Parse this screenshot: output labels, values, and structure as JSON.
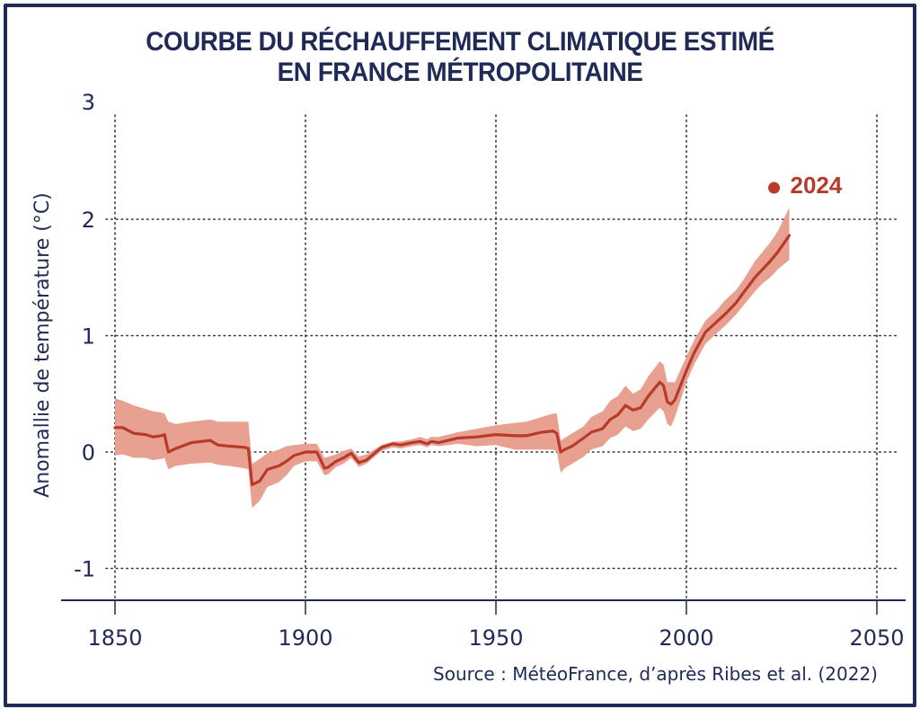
{
  "chart_data": {
    "type": "line",
    "title": [
      "COURBE DU RÉCHAUFFEMENT CLIMATIQUE ESTIMÉ",
      "EN FRANCE MÉTROPOLITAINE"
    ],
    "xlabel": "",
    "ylabel": "Anomallie de température (°C)",
    "xlim": [
      1842,
      2062
    ],
    "ylim": [
      -1.3,
      3
    ],
    "xticks": [
      1850,
      1900,
      1950,
      2000,
      2050
    ],
    "xtick_labels": [
      "1850",
      "1900",
      "1950",
      "2000",
      "2050"
    ],
    "yticks": [
      3,
      2,
      1,
      0,
      -1
    ],
    "ytick_labels": [
      "3",
      "2",
      "1",
      "0",
      "-1"
    ],
    "grid": true,
    "colors": {
      "line": "#b83a2b",
      "band": "#e8a090",
      "axis": "#1f2a56",
      "grid": "#333333"
    },
    "series": [
      {
        "name": "Estimated warming (central)",
        "x": [
          1850,
          1852,
          1855,
          1858,
          1860,
          1862,
          1863,
          1864,
          1866,
          1870,
          1875,
          1877,
          1880,
          1884,
          1885,
          1886,
          1888,
          1890,
          1893,
          1895,
          1897,
          1900,
          1903,
          1905,
          1906,
          1908,
          1910,
          1912,
          1914,
          1916,
          1920,
          1923,
          1925,
          1928,
          1930,
          1932,
          1933,
          1935,
          1940,
          1945,
          1950,
          1955,
          1958,
          1962,
          1965,
          1966,
          1967,
          1968,
          1970,
          1973,
          1975,
          1978,
          1980,
          1982,
          1984,
          1986,
          1988,
          1990,
          1993,
          1994,
          1995,
          1996,
          1997,
          2000,
          2002,
          2005,
          2008,
          2010,
          2013,
          2015,
          2018,
          2020,
          2022,
          2024,
          2027
        ],
        "y": [
          0.21,
          0.21,
          0.16,
          0.15,
          0.13,
          0.14,
          0.15,
          0.0,
          0.03,
          0.08,
          0.1,
          0.06,
          0.05,
          0.04,
          0.03,
          -0.28,
          -0.25,
          -0.15,
          -0.12,
          -0.08,
          -0.03,
          0.0,
          0.0,
          -0.14,
          -0.13,
          -0.08,
          -0.05,
          -0.01,
          -0.09,
          -0.07,
          0.04,
          0.07,
          0.06,
          0.08,
          0.09,
          0.07,
          0.09,
          0.08,
          0.12,
          0.13,
          0.15,
          0.14,
          0.14,
          0.17,
          0.18,
          0.16,
          0.0,
          0.02,
          0.05,
          0.12,
          0.17,
          0.2,
          0.28,
          0.32,
          0.4,
          0.36,
          0.38,
          0.48,
          0.6,
          0.57,
          0.43,
          0.41,
          0.45,
          0.7,
          0.85,
          1.03,
          1.12,
          1.18,
          1.28,
          1.37,
          1.5,
          1.57,
          1.64,
          1.72,
          1.86
        ]
      },
      {
        "name": "Uncertainty lower bound",
        "x": [
          1850,
          1852,
          1855,
          1858,
          1860,
          1862,
          1863,
          1864,
          1866,
          1870,
          1875,
          1877,
          1880,
          1884,
          1885,
          1886,
          1888,
          1890,
          1893,
          1895,
          1897,
          1900,
          1903,
          1905,
          1906,
          1908,
          1910,
          1912,
          1914,
          1916,
          1920,
          1923,
          1925,
          1928,
          1930,
          1932,
          1933,
          1935,
          1940,
          1945,
          1950,
          1955,
          1958,
          1962,
          1965,
          1966,
          1967,
          1968,
          1970,
          1973,
          1975,
          1978,
          1980,
          1982,
          1984,
          1986,
          1988,
          1990,
          1993,
          1994,
          1995,
          1996,
          1997,
          2000,
          2002,
          2005,
          2008,
          2010,
          2013,
          2015,
          2018,
          2020,
          2022,
          2024,
          2027
        ],
        "y": [
          -0.03,
          -0.02,
          -0.05,
          -0.05,
          -0.07,
          -0.06,
          -0.05,
          -0.15,
          -0.12,
          -0.1,
          -0.09,
          -0.11,
          -0.12,
          -0.14,
          -0.15,
          -0.48,
          -0.42,
          -0.3,
          -0.26,
          -0.2,
          -0.12,
          -0.08,
          -0.08,
          -0.2,
          -0.19,
          -0.13,
          -0.1,
          -0.05,
          -0.13,
          -0.1,
          0.01,
          0.04,
          0.03,
          0.05,
          0.06,
          0.04,
          0.06,
          0.05,
          0.07,
          0.05,
          0.06,
          0.02,
          0.02,
          0.02,
          0.02,
          0.0,
          -0.18,
          -0.14,
          -0.1,
          -0.04,
          0.02,
          0.05,
          0.12,
          0.15,
          0.22,
          0.18,
          0.2,
          0.28,
          0.38,
          0.35,
          0.24,
          0.22,
          0.3,
          0.6,
          0.75,
          0.93,
          1.02,
          1.08,
          1.18,
          1.26,
          1.38,
          1.45,
          1.5,
          1.57,
          1.65
        ]
      },
      {
        "name": "Uncertainty upper bound",
        "x": [
          1850,
          1852,
          1855,
          1858,
          1860,
          1862,
          1863,
          1864,
          1866,
          1870,
          1875,
          1877,
          1880,
          1884,
          1885,
          1886,
          1888,
          1890,
          1893,
          1895,
          1897,
          1900,
          1903,
          1905,
          1906,
          1908,
          1910,
          1912,
          1914,
          1916,
          1920,
          1923,
          1925,
          1928,
          1930,
          1932,
          1933,
          1935,
          1940,
          1945,
          1950,
          1955,
          1958,
          1962,
          1965,
          1966,
          1967,
          1968,
          1970,
          1973,
          1975,
          1978,
          1980,
          1982,
          1984,
          1986,
          1988,
          1990,
          1993,
          1994,
          1995,
          1996,
          1997,
          2000,
          2002,
          2005,
          2008,
          2010,
          2013,
          2015,
          2018,
          2020,
          2022,
          2024,
          2027
        ],
        "y": [
          0.46,
          0.44,
          0.4,
          0.37,
          0.35,
          0.34,
          0.33,
          0.26,
          0.24,
          0.26,
          0.28,
          0.26,
          0.26,
          0.26,
          0.26,
          -0.1,
          -0.06,
          -0.01,
          0.02,
          0.05,
          0.06,
          0.07,
          0.07,
          -0.05,
          -0.04,
          -0.02,
          0.01,
          0.03,
          -0.04,
          -0.02,
          0.06,
          0.09,
          0.09,
          0.11,
          0.13,
          0.11,
          0.13,
          0.13,
          0.17,
          0.2,
          0.23,
          0.25,
          0.26,
          0.3,
          0.33,
          0.33,
          0.1,
          0.12,
          0.16,
          0.22,
          0.3,
          0.35,
          0.44,
          0.48,
          0.57,
          0.5,
          0.54,
          0.65,
          0.78,
          0.75,
          0.6,
          0.6,
          0.6,
          0.82,
          0.96,
          1.13,
          1.22,
          1.3,
          1.39,
          1.48,
          1.64,
          1.72,
          1.8,
          1.9,
          2.1
        ]
      }
    ],
    "annotations": [
      {
        "label": "2024",
        "x": 2023,
        "y": 2.27,
        "marker": "dot"
      }
    ],
    "source": "Source : MétéoFrance, d’après Ribes et al. (2022)"
  }
}
